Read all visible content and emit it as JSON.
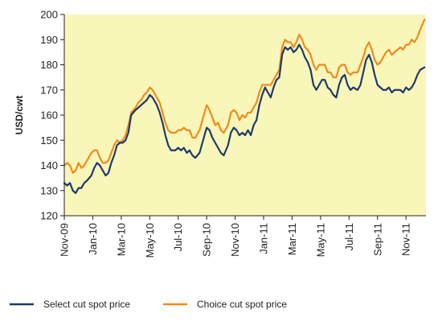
{
  "chart_data": {
    "type": "line",
    "title": "",
    "xlabel": "",
    "ylabel": "USD/cwt",
    "ylim": [
      120,
      200
    ],
    "yticks": [
      120,
      130,
      140,
      150,
      160,
      170,
      180,
      190,
      200
    ],
    "x_tick_labels": [
      "Nov-09",
      "Jan-10",
      "Mar-10",
      "May-10",
      "Jul-10",
      "Sep-10",
      "Nov-10",
      "Jan-11",
      "Mar-11",
      "May-11",
      "Jul-11",
      "Sep-11",
      "Nov-11"
    ],
    "x_tick_months": [
      0,
      2,
      4,
      6,
      8,
      10,
      12,
      14,
      16,
      18,
      20,
      22,
      24
    ],
    "x_range_months": [
      0,
      25.4
    ],
    "grid": false,
    "legend_position": "bottom",
    "colors": {
      "plot_bg": "#f9f6b9",
      "select": "#1b3a6b",
      "choice": "#f08a1d",
      "axis": "#231f20"
    },
    "series": [
      {
        "name": "Select cut spot price",
        "color": "#1b3a6b",
        "points": [
          [
            0.0,
            133
          ],
          [
            0.2,
            132
          ],
          [
            0.4,
            133
          ],
          [
            0.6,
            130
          ],
          [
            0.8,
            129
          ],
          [
            1.0,
            131
          ],
          [
            1.2,
            131
          ],
          [
            1.4,
            133
          ],
          [
            1.6,
            134
          ],
          [
            1.9,
            136
          ],
          [
            2.1,
            139
          ],
          [
            2.3,
            141
          ],
          [
            2.5,
            140
          ],
          [
            2.7,
            138
          ],
          [
            2.9,
            136
          ],
          [
            3.1,
            137
          ],
          [
            3.3,
            141
          ],
          [
            3.5,
            144
          ],
          [
            3.7,
            148
          ],
          [
            3.9,
            149
          ],
          [
            4.1,
            149
          ],
          [
            4.3,
            150
          ],
          [
            4.5,
            153
          ],
          [
            4.7,
            160
          ],
          [
            5.0,
            162
          ],
          [
            5.2,
            163
          ],
          [
            5.4,
            164
          ],
          [
            5.6,
            165
          ],
          [
            5.8,
            166
          ],
          [
            6.0,
            168
          ],
          [
            6.2,
            167
          ],
          [
            6.5,
            164
          ],
          [
            6.7,
            161
          ],
          [
            6.9,
            157
          ],
          [
            7.1,
            152
          ],
          [
            7.3,
            148
          ],
          [
            7.5,
            146
          ],
          [
            7.8,
            146
          ],
          [
            8.0,
            147
          ],
          [
            8.2,
            146
          ],
          [
            8.4,
            147
          ],
          [
            8.6,
            145
          ],
          [
            8.8,
            146
          ],
          [
            9.0,
            144
          ],
          [
            9.2,
            143
          ],
          [
            9.5,
            145
          ],
          [
            9.8,
            151
          ],
          [
            10.0,
            155
          ],
          [
            10.2,
            154
          ],
          [
            10.4,
            151
          ],
          [
            10.6,
            149
          ],
          [
            10.8,
            147
          ],
          [
            11.0,
            145
          ],
          [
            11.2,
            144
          ],
          [
            11.5,
            148
          ],
          [
            11.7,
            153
          ],
          [
            11.9,
            155
          ],
          [
            12.1,
            154
          ],
          [
            12.3,
            152
          ],
          [
            12.5,
            153
          ],
          [
            12.7,
            152
          ],
          [
            12.9,
            154
          ],
          [
            13.1,
            152
          ],
          [
            13.3,
            156
          ],
          [
            13.5,
            158
          ],
          [
            13.7,
            164
          ],
          [
            13.9,
            168
          ],
          [
            14.1,
            171
          ],
          [
            14.3,
            169
          ],
          [
            14.5,
            167
          ],
          [
            14.7,
            171
          ],
          [
            14.9,
            174
          ],
          [
            15.1,
            175
          ],
          [
            15.3,
            184
          ],
          [
            15.5,
            187
          ],
          [
            15.7,
            186
          ],
          [
            15.9,
            187
          ],
          [
            16.1,
            185
          ],
          [
            16.3,
            186
          ],
          [
            16.5,
            188
          ],
          [
            16.7,
            186
          ],
          [
            16.9,
            183
          ],
          [
            17.1,
            181
          ],
          [
            17.3,
            178
          ],
          [
            17.5,
            172
          ],
          [
            17.7,
            170
          ],
          [
            17.9,
            172
          ],
          [
            18.1,
            174
          ],
          [
            18.3,
            174
          ],
          [
            18.5,
            171
          ],
          [
            18.7,
            170
          ],
          [
            18.9,
            168
          ],
          [
            19.1,
            167
          ],
          [
            19.3,
            172
          ],
          [
            19.5,
            175
          ],
          [
            19.7,
            176
          ],
          [
            19.9,
            172
          ],
          [
            20.1,
            170
          ],
          [
            20.3,
            171
          ],
          [
            20.6,
            170
          ],
          [
            20.8,
            172
          ],
          [
            21.0,
            177
          ],
          [
            21.2,
            182
          ],
          [
            21.4,
            184
          ],
          [
            21.6,
            181
          ],
          [
            21.8,
            176
          ],
          [
            22.0,
            172
          ],
          [
            22.2,
            171
          ],
          [
            22.4,
            170
          ],
          [
            22.6,
            170
          ],
          [
            22.8,
            171
          ],
          [
            23.0,
            169
          ],
          [
            23.2,
            170
          ],
          [
            23.4,
            170
          ],
          [
            23.6,
            170
          ],
          [
            23.8,
            169
          ],
          [
            24.0,
            171
          ],
          [
            24.2,
            170
          ],
          [
            24.4,
            171
          ],
          [
            24.6,
            173
          ],
          [
            24.8,
            176
          ],
          [
            25.0,
            178
          ],
          [
            25.3,
            179
          ]
        ]
      },
      {
        "name": "Choice cut spot price",
        "color": "#f08a1d",
        "points": [
          [
            0.0,
            140
          ],
          [
            0.2,
            141
          ],
          [
            0.4,
            140
          ],
          [
            0.6,
            137
          ],
          [
            0.8,
            138
          ],
          [
            1.0,
            141
          ],
          [
            1.2,
            139
          ],
          [
            1.4,
            140
          ],
          [
            1.6,
            142
          ],
          [
            1.9,
            145
          ],
          [
            2.1,
            146
          ],
          [
            2.3,
            146
          ],
          [
            2.5,
            143
          ],
          [
            2.7,
            141
          ],
          [
            2.9,
            141
          ],
          [
            3.1,
            142
          ],
          [
            3.3,
            145
          ],
          [
            3.5,
            148
          ],
          [
            3.7,
            150
          ],
          [
            3.9,
            149
          ],
          [
            4.1,
            150
          ],
          [
            4.3,
            152
          ],
          [
            4.5,
            156
          ],
          [
            4.7,
            161
          ],
          [
            5.0,
            163
          ],
          [
            5.2,
            165
          ],
          [
            5.4,
            166
          ],
          [
            5.6,
            168
          ],
          [
            5.8,
            169
          ],
          [
            6.0,
            171
          ],
          [
            6.2,
            170
          ],
          [
            6.5,
            167
          ],
          [
            6.7,
            165
          ],
          [
            6.9,
            161
          ],
          [
            7.1,
            157
          ],
          [
            7.3,
            154
          ],
          [
            7.5,
            153
          ],
          [
            7.8,
            153
          ],
          [
            8.0,
            154
          ],
          [
            8.2,
            154
          ],
          [
            8.4,
            155
          ],
          [
            8.6,
            154
          ],
          [
            8.8,
            154
          ],
          [
            9.0,
            151
          ],
          [
            9.2,
            151
          ],
          [
            9.5,
            154
          ],
          [
            9.8,
            160
          ],
          [
            10.0,
            164
          ],
          [
            10.2,
            162
          ],
          [
            10.4,
            159
          ],
          [
            10.6,
            156
          ],
          [
            10.8,
            157
          ],
          [
            11.0,
            154
          ],
          [
            11.2,
            153
          ],
          [
            11.5,
            156
          ],
          [
            11.7,
            161
          ],
          [
            11.9,
            162
          ],
          [
            12.1,
            161
          ],
          [
            12.3,
            158
          ],
          [
            12.5,
            160
          ],
          [
            12.7,
            159
          ],
          [
            12.9,
            161
          ],
          [
            13.1,
            161
          ],
          [
            13.3,
            163
          ],
          [
            13.5,
            165
          ],
          [
            13.7,
            169
          ],
          [
            13.9,
            172
          ],
          [
            14.1,
            172
          ],
          [
            14.3,
            172
          ],
          [
            14.5,
            172
          ],
          [
            14.7,
            174
          ],
          [
            14.9,
            176
          ],
          [
            15.1,
            178
          ],
          [
            15.3,
            187
          ],
          [
            15.5,
            190
          ],
          [
            15.7,
            189
          ],
          [
            15.9,
            189
          ],
          [
            16.1,
            187
          ],
          [
            16.3,
            189
          ],
          [
            16.5,
            192
          ],
          [
            16.7,
            190
          ],
          [
            16.9,
            187
          ],
          [
            17.1,
            186
          ],
          [
            17.3,
            184
          ],
          [
            17.5,
            180
          ],
          [
            17.7,
            178
          ],
          [
            17.9,
            180
          ],
          [
            18.1,
            180
          ],
          [
            18.3,
            180
          ],
          [
            18.5,
            177
          ],
          [
            18.7,
            177
          ],
          [
            18.9,
            175
          ],
          [
            19.1,
            175
          ],
          [
            19.3,
            179
          ],
          [
            19.5,
            180
          ],
          [
            19.7,
            180
          ],
          [
            19.9,
            177
          ],
          [
            20.1,
            176
          ],
          [
            20.3,
            177
          ],
          [
            20.6,
            177
          ],
          [
            20.8,
            180
          ],
          [
            21.0,
            183
          ],
          [
            21.2,
            187
          ],
          [
            21.4,
            189
          ],
          [
            21.6,
            186
          ],
          [
            21.8,
            182
          ],
          [
            22.0,
            180
          ],
          [
            22.2,
            181
          ],
          [
            22.4,
            183
          ],
          [
            22.6,
            185
          ],
          [
            22.8,
            186
          ],
          [
            23.0,
            184
          ],
          [
            23.2,
            185
          ],
          [
            23.4,
            186
          ],
          [
            23.6,
            187
          ],
          [
            23.8,
            186
          ],
          [
            24.0,
            188
          ],
          [
            24.2,
            188
          ],
          [
            24.4,
            190
          ],
          [
            24.6,
            189
          ],
          [
            24.8,
            191
          ],
          [
            25.0,
            194
          ],
          [
            25.3,
            198
          ]
        ]
      }
    ]
  }
}
